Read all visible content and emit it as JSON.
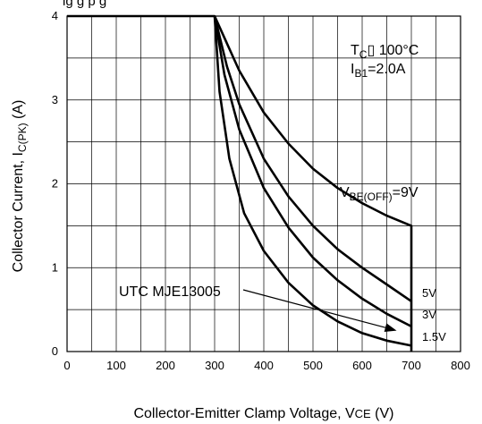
{
  "chart_data": {
    "type": "line",
    "title": "ig                          g                     p       g",
    "xlabel": {
      "main": "Collector-Emitter Clamp Voltage, V",
      "sub": "CE",
      "tail": " (V)"
    },
    "ylabel": {
      "main": "Collector Current, I",
      "sub": "C(PK)",
      "tail": " (A)"
    },
    "xlim": [
      0,
      800
    ],
    "ylim": [
      0,
      4
    ],
    "xticks": [
      "0",
      "100",
      "200",
      "300",
      "400",
      "500",
      "600",
      "700",
      "800"
    ],
    "yticks": [
      "0",
      "1",
      "2",
      "3",
      "4"
    ],
    "grid": true,
    "conditions": {
      "tc_main": "T",
      "tc_sub": "C",
      "tc_glyph": "▯",
      "tc_value": " 100°C",
      "ib_main": "I",
      "ib_sub": "B1",
      "ib_value": "=2.0A"
    },
    "series": [
      {
        "name": "V_BE(OFF)=9V",
        "x": [
          0,
          300,
          350,
          400,
          450,
          500,
          550,
          600,
          650,
          700,
          700
        ],
        "y": [
          4.0,
          4.0,
          3.35,
          2.85,
          2.48,
          2.18,
          1.95,
          1.77,
          1.62,
          1.5,
          0
        ]
      },
      {
        "name": "5V",
        "x": [
          300,
          325,
          350,
          400,
          450,
          500,
          550,
          600,
          650,
          700
        ],
        "y": [
          4.0,
          3.4,
          2.95,
          2.3,
          1.85,
          1.5,
          1.22,
          1.0,
          0.8,
          0.6
        ]
      },
      {
        "name": "3V",
        "x": [
          300,
          320,
          350,
          400,
          450,
          500,
          550,
          600,
          650,
          700
        ],
        "y": [
          4.0,
          3.3,
          2.65,
          1.95,
          1.48,
          1.12,
          0.85,
          0.63,
          0.45,
          0.3
        ]
      },
      {
        "name": "1.5V",
        "x": [
          300,
          310,
          330,
          360,
          400,
          450,
          500,
          550,
          600,
          650,
          700
        ],
        "y": [
          4.0,
          3.1,
          2.3,
          1.65,
          1.2,
          0.82,
          0.55,
          0.36,
          0.22,
          0.13,
          0.07
        ]
      }
    ],
    "legend": {
      "vbe_main": "V",
      "vbe_sub": "BE(OFF)",
      "vbe_value": "=9V",
      "v5": "5V",
      "v3": "3V",
      "v15": "1.5V"
    },
    "annotation": {
      "text": "UTC MJE13005",
      "arrow_to": [
        670,
        0.25
      ]
    }
  }
}
